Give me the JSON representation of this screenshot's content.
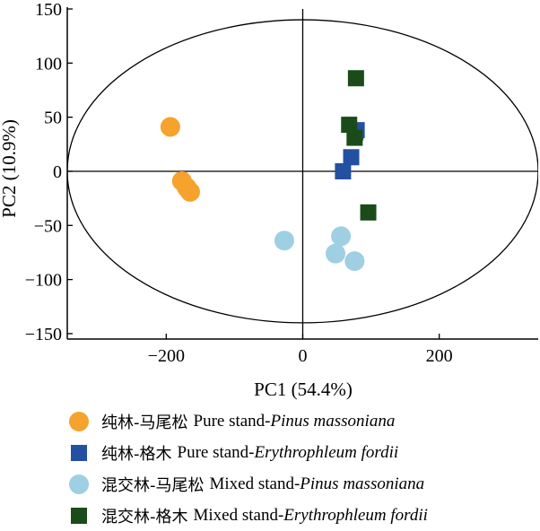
{
  "chart_data": {
    "type": "scatter",
    "xlabel": "PC1 (54.4%)",
    "ylabel": "PC2 (10.9%)",
    "xlim": [
      -345,
      345
    ],
    "ylim": [
      -155,
      150
    ],
    "xticks": [
      -200,
      0,
      200
    ],
    "xtick_labels": [
      "−200",
      "0",
      "200"
    ],
    "yticks": [
      150,
      100,
      50,
      0,
      -50,
      -100,
      -150
    ],
    "ytick_labels": [
      "150",
      "100",
      "50",
      "0",
      "−50",
      "−100",
      "−150"
    ],
    "reference_lines": {
      "x": 0,
      "y": 0
    },
    "ellipse": {
      "center": [
        0,
        0
      ],
      "x_radius": 345,
      "y_radius": 140
    },
    "series": [
      {
        "key": "ps_pinus",
        "name_cn": "纯林-马尾松",
        "name_en": "Pure stand-",
        "name_species": "Pinus massoniana",
        "marker": "circle",
        "color": "#F5A32C",
        "points": [
          [
            -194,
            41
          ],
          [
            -177,
            -9
          ],
          [
            -170,
            -15
          ],
          [
            -165,
            -19
          ]
        ]
      },
      {
        "key": "ps_erythro",
        "name_cn": "纯林-格木",
        "name_en": "Pure stand-",
        "name_species": "Erythrophleum fordii",
        "marker": "square",
        "color": "#2350A0",
        "points": [
          [
            79,
            38
          ],
          [
            77,
            36
          ],
          [
            71,
            13
          ],
          [
            59,
            0
          ]
        ]
      },
      {
        "key": "ms_pinus",
        "name_cn": "混交林-马尾松",
        "name_en": "Mixed stand-",
        "name_species": "Pinus massoniana",
        "marker": "circle",
        "color": "#9FCFE3",
        "points": [
          [
            -27,
            -64
          ],
          [
            56,
            -60
          ],
          [
            48,
            -76
          ],
          [
            76,
            -83
          ]
        ]
      },
      {
        "key": "ms_erythro",
        "name_cn": "混交林-格木",
        "name_en": "Mixed stand-",
        "name_species": "Erythrophleum fordii",
        "marker": "square",
        "color": "#1B4B19",
        "points": [
          [
            78,
            86
          ],
          [
            68,
            43
          ],
          [
            76,
            31
          ],
          [
            96,
            -38
          ]
        ]
      }
    ]
  }
}
